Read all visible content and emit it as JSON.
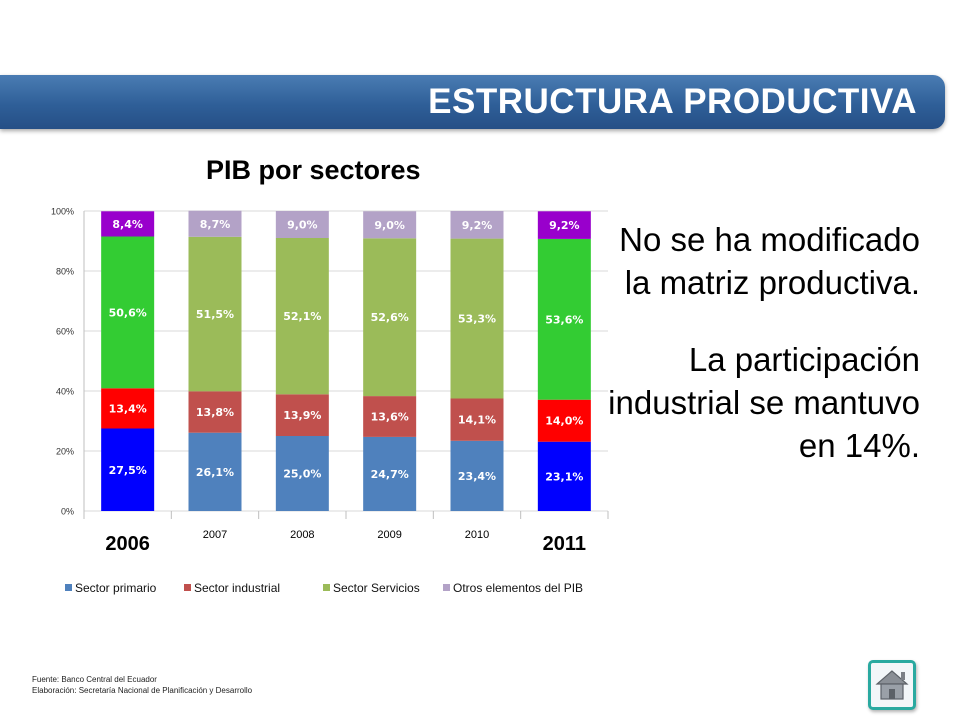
{
  "banner": {
    "title": "ESTRUCTURA PRODUCTIVA"
  },
  "chart_data": {
    "type": "bar",
    "stacked": true,
    "title": "PIB por sectores",
    "categories": [
      "2006",
      "2007",
      "2008",
      "2009",
      "2010",
      "2011"
    ],
    "highlighted_categories": [
      "2006",
      "2011"
    ],
    "y_ticks": [
      "0%",
      "20%",
      "40%",
      "60%",
      "80%",
      "100%"
    ],
    "ylim": [
      0,
      100
    ],
    "legend_position": "bottom",
    "series": [
      {
        "name": "Sector primario",
        "color": "#4f81bd",
        "highlight_color": "#0000ff",
        "values": [
          27.5,
          26.1,
          25.0,
          24.7,
          23.4,
          23.1
        ],
        "labels": [
          "27,5%",
          "26,1%",
          "25,0%",
          "24,7%",
          "23,4%",
          "23,1%"
        ]
      },
      {
        "name": "Sector industrial",
        "color": "#c0504d",
        "highlight_color": "#ff0000",
        "values": [
          13.4,
          13.8,
          13.9,
          13.6,
          14.1,
          14.0
        ],
        "labels": [
          "13,4%",
          "13,8%",
          "13,9%",
          "13,6%",
          "14,1%",
          "14,0%"
        ]
      },
      {
        "name": "Sector Servicios",
        "color": "#9bbb59",
        "highlight_color": "#33cc33",
        "values": [
          50.6,
          51.5,
          52.1,
          52.6,
          53.3,
          53.6
        ],
        "labels": [
          "50,6%",
          "51,5%",
          "52,1%",
          "52,6%",
          "53,3%",
          "53,6%"
        ]
      },
      {
        "name": "Otros elementos del PIB",
        "color": "#b3a2c7",
        "highlight_color": "#9900cc",
        "values": [
          8.4,
          8.7,
          9.0,
          9.0,
          9.2,
          9.2
        ],
        "labels": [
          "8,4%",
          "8,7%",
          "9,0%",
          "9,0%",
          "9,2%",
          "9,2%"
        ]
      }
    ]
  },
  "side_text": {
    "paragraph1": "No se ha modificado la matriz productiva.",
    "paragraph2": "La participación industrial se mantuvo en 14%."
  },
  "footnote": {
    "source": "Fuente: Banco Central del Ecuador",
    "elaboration": "Elaboración: Secretaría Nacional de Planificación y Desarrollo"
  },
  "home_button": {
    "icon": "home-icon"
  }
}
